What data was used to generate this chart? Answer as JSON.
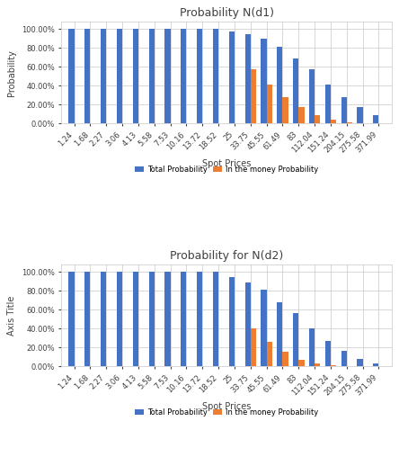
{
  "spot_prices": [
    "1.24",
    "1.68",
    "2.27",
    "3.06",
    "4.13",
    "5.58",
    "7.53",
    "10.16",
    "13.72",
    "18.52",
    "25",
    "33.75",
    "45.55",
    "61.49",
    "83",
    "112.04",
    "151.24",
    "204.15",
    "275.58",
    "371.99"
  ],
  "nd1_total": [
    1.0,
    1.0,
    1.0,
    1.0,
    1.0,
    1.0,
    1.0,
    1.0,
    1.0,
    1.0,
    0.97,
    0.95,
    0.9,
    0.81,
    0.69,
    0.57,
    0.41,
    0.28,
    0.17,
    0.09
  ],
  "nd1_itm": [
    0,
    0,
    0,
    0,
    0,
    0,
    0,
    0,
    0,
    0,
    0,
    0.57,
    0.41,
    0.28,
    0.17,
    0.09,
    0.04,
    0.01,
    0.005,
    0.001
  ],
  "nd2_total": [
    1.0,
    1.0,
    1.0,
    1.0,
    1.0,
    1.0,
    1.0,
    1.0,
    1.0,
    1.0,
    0.95,
    0.89,
    0.81,
    0.68,
    0.56,
    0.4,
    0.27,
    0.16,
    0.08,
    0.03
  ],
  "nd2_itm": [
    0,
    0,
    0,
    0,
    0,
    0,
    0,
    0,
    0,
    0,
    0,
    0.4,
    0.26,
    0.15,
    0.07,
    0.03,
    0.01,
    0.003,
    0.001,
    0.0001
  ],
  "title1": "Probability N(d1)",
  "title2": "Probability for N(d2)",
  "xlabel": "Spot Prices",
  "ylabel1": "Probability",
  "ylabel2": "Axis Title",
  "legend_total": "Total Probability",
  "legend_itm": "In the money Probability",
  "color_total": "#4472C4",
  "color_itm": "#ED7D31",
  "yticks": [
    0.0,
    0.2,
    0.4,
    0.6,
    0.8,
    1.0
  ],
  "ytick_labels": [
    "0.00%",
    "20.00%",
    "40.00%",
    "60.00%",
    "80.00%",
    "100.00%"
  ]
}
